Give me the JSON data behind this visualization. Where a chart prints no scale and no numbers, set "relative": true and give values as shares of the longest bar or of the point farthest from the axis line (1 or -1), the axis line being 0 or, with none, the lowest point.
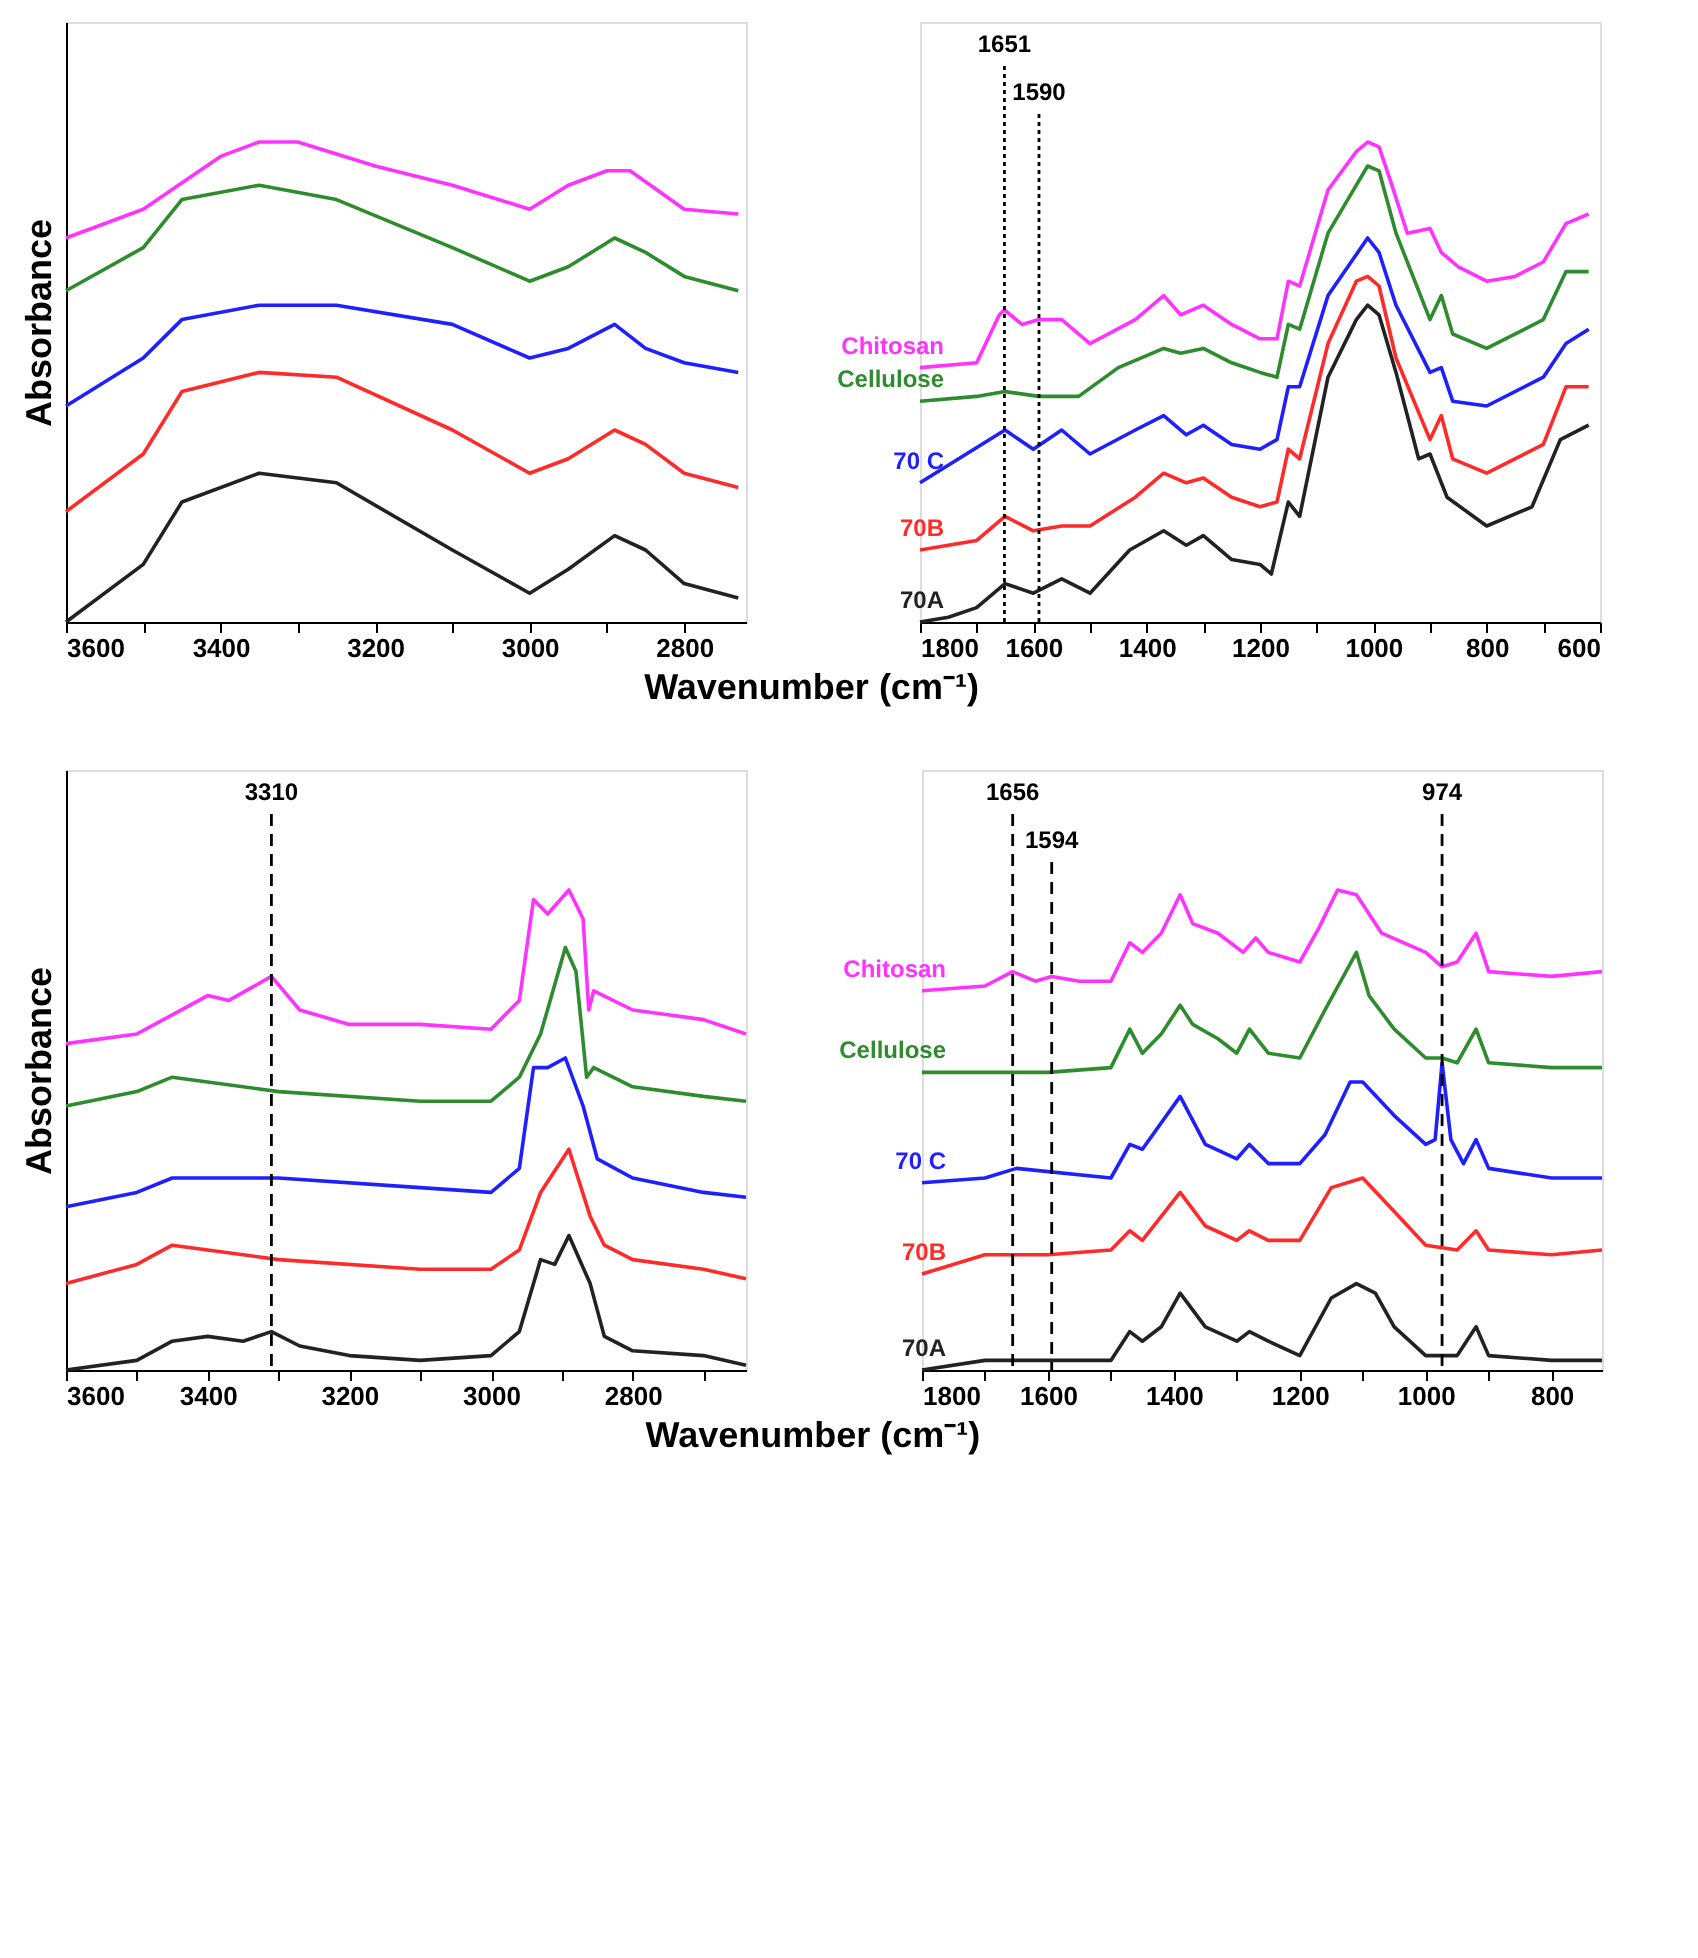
{
  "chart_data": [
    {
      "type": "line",
      "relative": true,
      "ylabel": "Absorbance",
      "xlabel": "Wavenumber (cm⁻¹)",
      "xlim": [
        3600,
        2720
      ],
      "xticks": [
        3600,
        {
          "value": 3500,
          "label": null
        },
        3400,
        {
          "value": 3300,
          "label": null
        },
        3200,
        {
          "value": 3100,
          "label": null
        },
        3000,
        {
          "value": 2900,
          "label": null
        },
        2800
      ],
      "series": [
        {
          "color": "#ff33ff",
          "x": [
            3600,
            3500,
            3400,
            3350,
            3300,
            3200,
            3100,
            3000,
            2950,
            2900,
            2870,
            2800,
            2730
          ],
          "values": [
            0.8,
            0.86,
            0.97,
            1.0,
            1.0,
            0.95,
            0.91,
            0.86,
            0.91,
            0.94,
            0.94,
            0.86,
            0.85
          ]
        },
        {
          "color": "#2e8b2e",
          "x": [
            3600,
            3500,
            3450,
            3350,
            3250,
            3100,
            3000,
            2950,
            2890,
            2850,
            2800,
            2730
          ],
          "values": [
            0.69,
            0.78,
            0.88,
            0.91,
            0.88,
            0.78,
            0.71,
            0.74,
            0.8,
            0.77,
            0.72,
            0.69
          ]
        },
        {
          "color": "#1f1fff",
          "x": [
            3600,
            3500,
            3450,
            3350,
            3250,
            3100,
            3000,
            2950,
            2890,
            2850,
            2800,
            2730
          ],
          "values": [
            0.45,
            0.55,
            0.63,
            0.66,
            0.66,
            0.62,
            0.55,
            0.57,
            0.62,
            0.57,
            0.54,
            0.52
          ]
        },
        {
          "color": "#ff2a2a",
          "x": [
            3600,
            3500,
            3450,
            3350,
            3250,
            3100,
            3000,
            2950,
            2890,
            2850,
            2800,
            2730
          ],
          "values": [
            0.23,
            0.35,
            0.48,
            0.52,
            0.51,
            0.4,
            0.31,
            0.34,
            0.4,
            0.37,
            0.31,
            0.28
          ]
        },
        {
          "color": "#222222",
          "x": [
            3600,
            3500,
            3450,
            3350,
            3250,
            3100,
            3000,
            2950,
            2890,
            2850,
            2800,
            2730
          ],
          "values": [
            0.0,
            0.12,
            0.25,
            0.31,
            0.29,
            0.15,
            0.06,
            0.11,
            0.18,
            0.15,
            0.08,
            0.05
          ]
        }
      ]
    },
    {
      "type": "line",
      "relative": true,
      "xlim": [
        1800,
        600
      ],
      "xticks": [
        1800,
        {
          "value": 1700,
          "label": null
        },
        1600,
        {
          "value": 1500,
          "label": null
        },
        1400,
        {
          "value": 1300,
          "label": null
        },
        1200,
        {
          "value": 1100,
          "label": null
        },
        1000,
        {
          "value": 900,
          "label": null
        },
        800,
        {
          "value": 700,
          "label": null
        },
        600
      ],
      "ref_lines": [
        {
          "axis": "x",
          "value": 1651,
          "label": "1651",
          "line_style": "dotted"
        },
        {
          "axis": "x",
          "value": 1590,
          "label": "1590",
          "line_style": "dotted"
        }
      ],
      "series": [
        {
          "name": "Chitosan",
          "color": "#ff33ff",
          "x": [
            1800,
            1700,
            1660,
            1651,
            1620,
            1590,
            1550,
            1500,
            1420,
            1370,
            1340,
            1300,
            1250,
            1200,
            1170,
            1150,
            1130,
            1080,
            1030,
            1010,
            990,
            970,
            940,
            900,
            880,
            850,
            800,
            750,
            700,
            660,
            620
          ],
          "values": [
            0.53,
            0.54,
            0.64,
            0.65,
            0.62,
            0.63,
            0.63,
            0.58,
            0.63,
            0.68,
            0.64,
            0.66,
            0.62,
            0.59,
            0.59,
            0.71,
            0.7,
            0.9,
            0.98,
            1.0,
            0.99,
            0.92,
            0.81,
            0.82,
            0.77,
            0.74,
            0.71,
            0.72,
            0.75,
            0.83,
            0.85
          ]
        },
        {
          "name": "Cellulose",
          "color": "#2e8b2e",
          "x": [
            1800,
            1700,
            1650,
            1590,
            1520,
            1450,
            1370,
            1340,
            1300,
            1250,
            1200,
            1170,
            1150,
            1130,
            1080,
            1030,
            1010,
            990,
            960,
            900,
            880,
            860,
            800,
            700,
            660,
            620
          ],
          "values": [
            0.46,
            0.47,
            0.48,
            0.47,
            0.47,
            0.53,
            0.57,
            0.56,
            0.57,
            0.54,
            0.52,
            0.51,
            0.62,
            0.61,
            0.81,
            0.91,
            0.95,
            0.94,
            0.81,
            0.63,
            0.68,
            0.6,
            0.57,
            0.63,
            0.73,
            0.73
          ]
        },
        {
          "name": "70 C",
          "color": "#1f1fff",
          "x": [
            1800,
            1650,
            1600,
            1550,
            1500,
            1420,
            1370,
            1330,
            1300,
            1250,
            1200,
            1170,
            1150,
            1130,
            1080,
            1010,
            990,
            960,
            900,
            880,
            860,
            800,
            700,
            660,
            620
          ],
          "values": [
            0.29,
            0.4,
            0.36,
            0.4,
            0.35,
            0.4,
            0.43,
            0.39,
            0.41,
            0.37,
            0.36,
            0.38,
            0.49,
            0.49,
            0.68,
            0.8,
            0.77,
            0.66,
            0.52,
            0.53,
            0.46,
            0.45,
            0.51,
            0.58,
            0.61
          ]
        },
        {
          "name": "70B",
          "color": "#ff2a2a",
          "x": [
            1800,
            1700,
            1650,
            1600,
            1550,
            1500,
            1420,
            1370,
            1330,
            1300,
            1250,
            1200,
            1170,
            1150,
            1130,
            1080,
            1030,
            1010,
            990,
            960,
            900,
            880,
            860,
            800,
            700,
            660,
            620
          ],
          "values": [
            0.15,
            0.17,
            0.22,
            0.19,
            0.2,
            0.2,
            0.26,
            0.31,
            0.29,
            0.3,
            0.26,
            0.24,
            0.25,
            0.36,
            0.34,
            0.58,
            0.71,
            0.72,
            0.7,
            0.55,
            0.38,
            0.43,
            0.34,
            0.31,
            0.37,
            0.49,
            0.49
          ]
        },
        {
          "name": "70A",
          "color": "#222222",
          "x": [
            1800,
            1750,
            1700,
            1650,
            1600,
            1550,
            1500,
            1430,
            1370,
            1330,
            1300,
            1250,
            1200,
            1180,
            1150,
            1130,
            1080,
            1030,
            1010,
            990,
            960,
            920,
            900,
            870,
            800,
            720,
            670,
            620
          ],
          "values": [
            0.0,
            0.01,
            0.03,
            0.08,
            0.06,
            0.09,
            0.06,
            0.15,
            0.19,
            0.16,
            0.18,
            0.13,
            0.12,
            0.1,
            0.25,
            0.22,
            0.51,
            0.63,
            0.66,
            0.64,
            0.52,
            0.34,
            0.35,
            0.26,
            0.2,
            0.24,
            0.38,
            0.41
          ]
        }
      ]
    },
    {
      "type": "line",
      "relative": true,
      "ylabel": "Absorbance",
      "xlabel": "Wavenumber (cm⁻¹)",
      "xlim": [
        3600,
        2640
      ],
      "xticks": [
        3600,
        {
          "value": 3500,
          "label": null
        },
        3400,
        {
          "value": 3300,
          "label": null
        },
        3200,
        {
          "value": 3100,
          "label": null
        },
        3000,
        {
          "value": 2900,
          "label": null
        },
        2800,
        {
          "value": 2700,
          "label": null
        }
      ],
      "ref_lines": [
        {
          "axis": "x",
          "value": 3310,
          "label": "3310",
          "line_style": "dashed"
        }
      ],
      "series": [
        {
          "color": "#ff33ff",
          "x": [
            3600,
            3500,
            3450,
            3400,
            3370,
            3310,
            3270,
            3200,
            3100,
            3000,
            2960,
            2940,
            2920,
            2890,
            2870,
            2862,
            2855,
            2800,
            2750,
            2700,
            2640
          ],
          "values": [
            0.68,
            0.7,
            0.74,
            0.78,
            0.77,
            0.82,
            0.75,
            0.72,
            0.72,
            0.71,
            0.77,
            0.98,
            0.95,
            1.0,
            0.94,
            0.75,
            0.79,
            0.75,
            0.74,
            0.73,
            0.7
          ]
        },
        {
          "color": "#2e8b2e",
          "x": [
            3600,
            3500,
            3450,
            3300,
            3100,
            3000,
            2960,
            2930,
            2895,
            2880,
            2865,
            2855,
            2800,
            2700,
            2640
          ],
          "values": [
            0.55,
            0.58,
            0.61,
            0.58,
            0.56,
            0.56,
            0.61,
            0.7,
            0.88,
            0.83,
            0.61,
            0.63,
            0.59,
            0.57,
            0.56
          ]
        },
        {
          "color": "#1f1fff",
          "x": [
            3600,
            3500,
            3450,
            3300,
            3100,
            3000,
            2960,
            2940,
            2920,
            2895,
            2870,
            2850,
            2800,
            2700,
            2640
          ],
          "values": [
            0.34,
            0.37,
            0.4,
            0.4,
            0.38,
            0.37,
            0.42,
            0.63,
            0.63,
            0.65,
            0.55,
            0.44,
            0.4,
            0.37,
            0.36
          ]
        },
        {
          "color": "#ff2a2a",
          "x": [
            3600,
            3500,
            3450,
            3400,
            3300,
            3100,
            3000,
            2960,
            2930,
            2890,
            2860,
            2840,
            2800,
            2700,
            2640
          ],
          "values": [
            0.18,
            0.22,
            0.26,
            0.25,
            0.23,
            0.21,
            0.21,
            0.25,
            0.37,
            0.46,
            0.32,
            0.26,
            0.23,
            0.21,
            0.19
          ]
        },
        {
          "color": "#222222",
          "x": [
            3600,
            3500,
            3450,
            3400,
            3350,
            3310,
            3270,
            3200,
            3100,
            3000,
            2960,
            2930,
            2910,
            2890,
            2860,
            2840,
            2800,
            2700,
            2640
          ],
          "values": [
            0.0,
            0.02,
            0.06,
            0.07,
            0.06,
            0.08,
            0.05,
            0.03,
            0.02,
            0.03,
            0.08,
            0.23,
            0.22,
            0.28,
            0.18,
            0.07,
            0.04,
            0.03,
            0.01
          ]
        }
      ]
    },
    {
      "type": "line",
      "relative": true,
      "xlim": [
        1800,
        720
      ],
      "xticks": [
        1800,
        {
          "value": 1700,
          "label": null
        },
        1600,
        {
          "value": 1500,
          "label": null
        },
        1400,
        {
          "value": 1300,
          "label": null
        },
        1200,
        {
          "value": 1100,
          "label": null
        },
        1000,
        {
          "value": 900,
          "label": null
        },
        800
      ],
      "ref_lines": [
        {
          "axis": "x",
          "value": 1656,
          "label": "1656",
          "line_style": "dashed"
        },
        {
          "axis": "x",
          "value": 1594,
          "label": "1594",
          "line_style": "dashed"
        },
        {
          "axis": "x",
          "value": 974,
          "label": "974",
          "line_style": "dashed"
        }
      ],
      "series": [
        {
          "name": "Chitosan",
          "color": "#ff33ff",
          "x": [
            1800,
            1700,
            1656,
            1620,
            1594,
            1550,
            1500,
            1470,
            1450,
            1420,
            1390,
            1370,
            1330,
            1290,
            1270,
            1250,
            1200,
            1170,
            1140,
            1110,
            1070,
            1000,
            974,
            950,
            920,
            900,
            800,
            720
          ],
          "values": [
            0.79,
            0.8,
            0.83,
            0.81,
            0.82,
            0.81,
            0.81,
            0.89,
            0.87,
            0.91,
            0.99,
            0.93,
            0.91,
            0.87,
            0.9,
            0.87,
            0.85,
            0.92,
            1.0,
            0.99,
            0.91,
            0.87,
            0.84,
            0.85,
            0.91,
            0.83,
            0.82,
            0.83
          ]
        },
        {
          "name": "Cellulose",
          "color": "#2e8b2e",
          "x": [
            1800,
            1600,
            1500,
            1470,
            1450,
            1420,
            1390,
            1370,
            1330,
            1300,
            1280,
            1250,
            1200,
            1160,
            1110,
            1090,
            1050,
            1000,
            974,
            950,
            920,
            900,
            800,
            720
          ],
          "values": [
            0.62,
            0.62,
            0.63,
            0.71,
            0.66,
            0.7,
            0.76,
            0.72,
            0.69,
            0.66,
            0.71,
            0.66,
            0.65,
            0.75,
            0.87,
            0.78,
            0.71,
            0.65,
            0.65,
            0.64,
            0.71,
            0.64,
            0.63,
            0.63
          ]
        },
        {
          "name": "70 C",
          "color": "#1f1fff",
          "x": [
            1800,
            1700,
            1650,
            1500,
            1470,
            1450,
            1390,
            1350,
            1300,
            1280,
            1250,
            1200,
            1160,
            1120,
            1100,
            1050,
            1000,
            985,
            974,
            960,
            940,
            920,
            900,
            800,
            720
          ],
          "values": [
            0.39,
            0.4,
            0.42,
            0.4,
            0.47,
            0.46,
            0.57,
            0.47,
            0.44,
            0.47,
            0.43,
            0.43,
            0.49,
            0.6,
            0.6,
            0.53,
            0.47,
            0.48,
            0.64,
            0.48,
            0.43,
            0.48,
            0.42,
            0.4,
            0.4
          ]
        },
        {
          "name": "70B",
          "color": "#ff2a2a",
          "x": [
            1800,
            1700,
            1600,
            1500,
            1470,
            1450,
            1390,
            1350,
            1300,
            1280,
            1250,
            1200,
            1150,
            1100,
            1050,
            1000,
            950,
            920,
            900,
            800,
            720
          ],
          "values": [
            0.2,
            0.24,
            0.24,
            0.25,
            0.29,
            0.27,
            0.37,
            0.3,
            0.27,
            0.29,
            0.27,
            0.27,
            0.38,
            0.4,
            0.33,
            0.26,
            0.25,
            0.29,
            0.25,
            0.24,
            0.25
          ]
        },
        {
          "name": "70A",
          "color": "#222222",
          "x": [
            1800,
            1700,
            1600,
            1500,
            1470,
            1450,
            1420,
            1390,
            1350,
            1300,
            1280,
            1250,
            1200,
            1150,
            1110,
            1080,
            1050,
            1000,
            950,
            920,
            900,
            800,
            720
          ],
          "values": [
            0.0,
            0.02,
            0.02,
            0.02,
            0.08,
            0.06,
            0.09,
            0.16,
            0.09,
            0.06,
            0.08,
            0.06,
            0.03,
            0.15,
            0.18,
            0.16,
            0.09,
            0.03,
            0.03,
            0.09,
            0.03,
            0.02,
            0.02
          ]
        }
      ]
    }
  ]
}
